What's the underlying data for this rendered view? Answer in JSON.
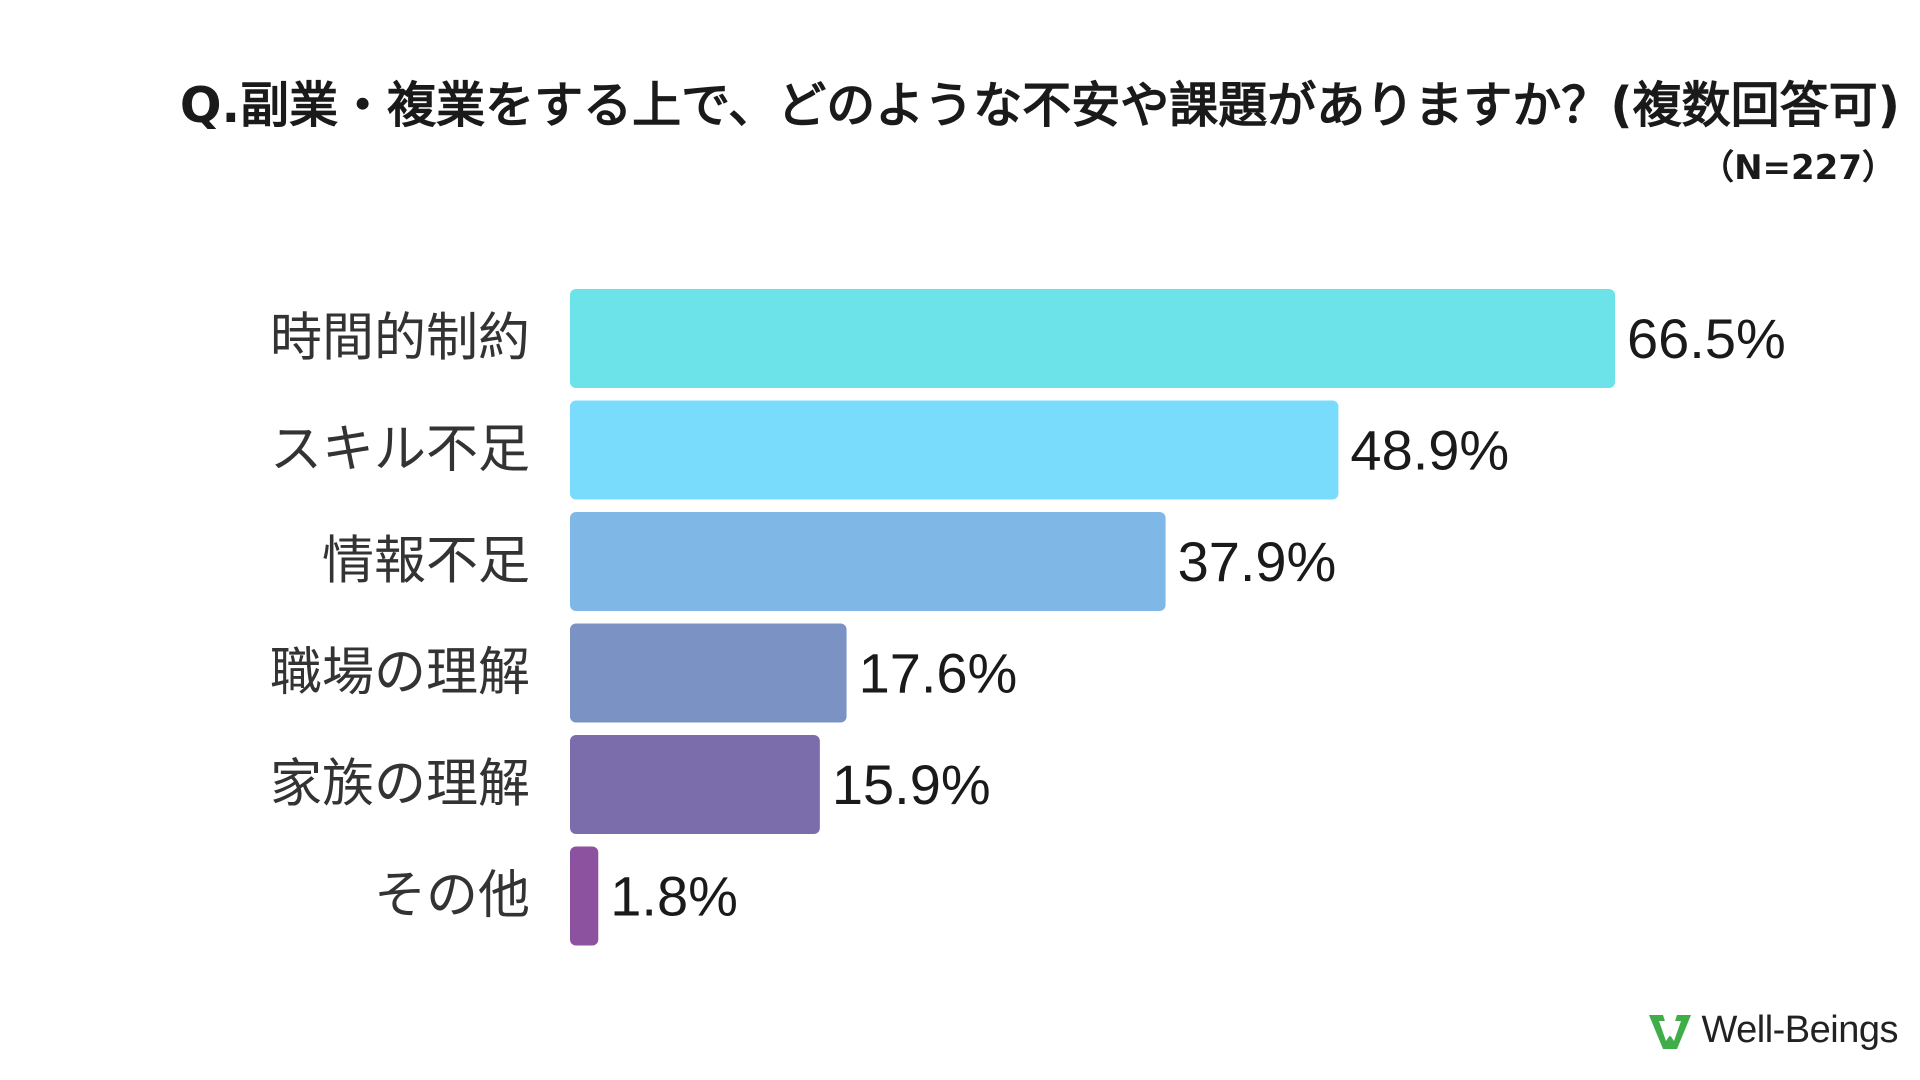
{
  "header": {
    "question": "Q.副業・複業をする上で、どのような不安や課題がありますか？(複数回答可)",
    "sample_size": "（N=227）"
  },
  "brand": {
    "name": "Well-Beings",
    "logo_color": "#3fae49"
  },
  "chart_data": {
    "type": "bar",
    "orientation": "horizontal",
    "categories": [
      "時間的制約",
      "スキル不足",
      "情報不足",
      "職場の理解",
      "家族の理解",
      "その他"
    ],
    "values": [
      66.5,
      48.9,
      37.9,
      17.6,
      15.9,
      1.8
    ],
    "value_labels": [
      "66.5%",
      "48.9%",
      "37.9%",
      "17.6%",
      "15.9%",
      "1.8%"
    ],
    "colors": [
      "#6ce3e8",
      "#79dcfd",
      "#7fb8e6",
      "#7a93c4",
      "#7b6dab",
      "#8c519f"
    ],
    "unit": "%",
    "grid": false,
    "legend": "none"
  }
}
